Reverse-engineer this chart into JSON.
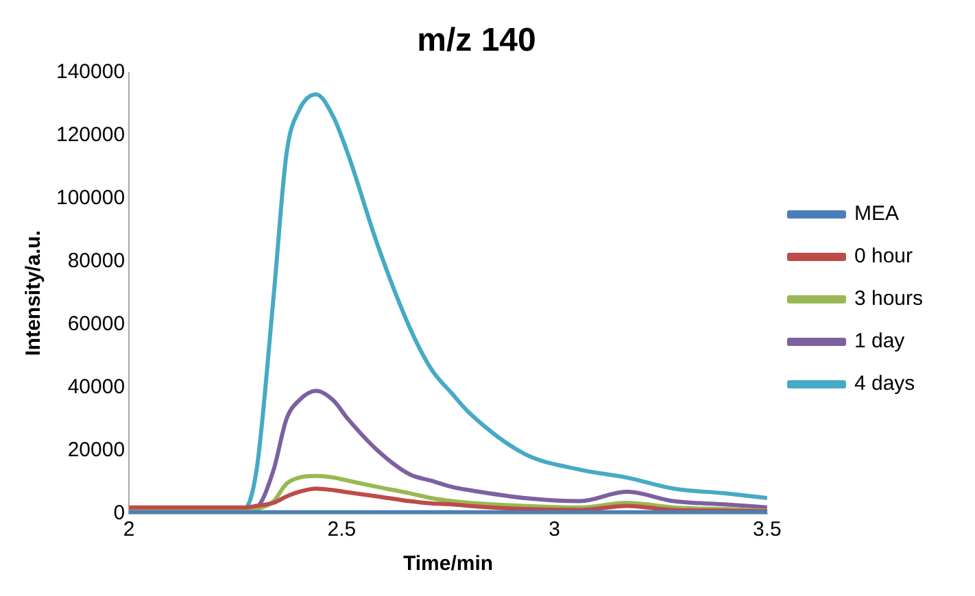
{
  "chart_data": {
    "type": "line",
    "title": "m/z 140",
    "xlabel": "Time/min",
    "ylabel": "Intensity/a.u.",
    "x": [
      2.0,
      2.1,
      2.2,
      2.27,
      2.3,
      2.34,
      2.37,
      2.4,
      2.44,
      2.48,
      2.515,
      2.585,
      2.66,
      2.71,
      2.76,
      2.8,
      2.93,
      3.06,
      3.17,
      3.28,
      3.4,
      3.5
    ],
    "series": [
      {
        "name": "MEA",
        "color": "#4a7ebb",
        "values": [
          500,
          500,
          500,
          500,
          500,
          500,
          500,
          500,
          500,
          500,
          500,
          500,
          500,
          500,
          500,
          500,
          500,
          500,
          500,
          500,
          500,
          500
        ]
      },
      {
        "name": "0 hour",
        "color": "#be4b48",
        "values": [
          2000,
          2000,
          2000,
          2000,
          2500,
          3500,
          5500,
          7000,
          8000,
          7500,
          6800,
          5500,
          4000,
          3300,
          3000,
          2500,
          1500,
          1200,
          2500,
          1200,
          1000,
          800
        ]
      },
      {
        "name": "3 hours",
        "color": "#98b954",
        "values": [
          1000,
          1000,
          1000,
          1000,
          1500,
          4000,
          9500,
          11500,
          12000,
          11500,
          10500,
          8500,
          6500,
          5000,
          4000,
          3500,
          2500,
          2000,
          3500,
          2000,
          1500,
          1000
        ]
      },
      {
        "name": "1 day",
        "color": "#7d60a0",
        "values": [
          1000,
          1000,
          1000,
          1200,
          2000,
          14000,
          30000,
          36000,
          39000,
          36000,
          30000,
          20000,
          12500,
          10500,
          8500,
          7500,
          5000,
          4000,
          7000,
          4000,
          3000,
          2000
        ]
      },
      {
        "name": "4 days",
        "color": "#46aac5",
        "values": [
          1000,
          1000,
          1000,
          1500,
          14000,
          69000,
          114000,
          128000,
          133000,
          126000,
          114000,
          85000,
          59000,
          46000,
          38000,
          32000,
          19000,
          14000,
          11500,
          8000,
          6500,
          5000
        ]
      }
    ],
    "xlim": [
      2,
      3.5
    ],
    "xticks": [
      2,
      2.5,
      3,
      3.5
    ],
    "ylim": [
      0,
      140000
    ],
    "yticks": [
      0,
      20000,
      40000,
      60000,
      80000,
      100000,
      120000,
      140000
    ],
    "grid": false,
    "legend": "right",
    "marker": "none",
    "line_style": "solid"
  }
}
